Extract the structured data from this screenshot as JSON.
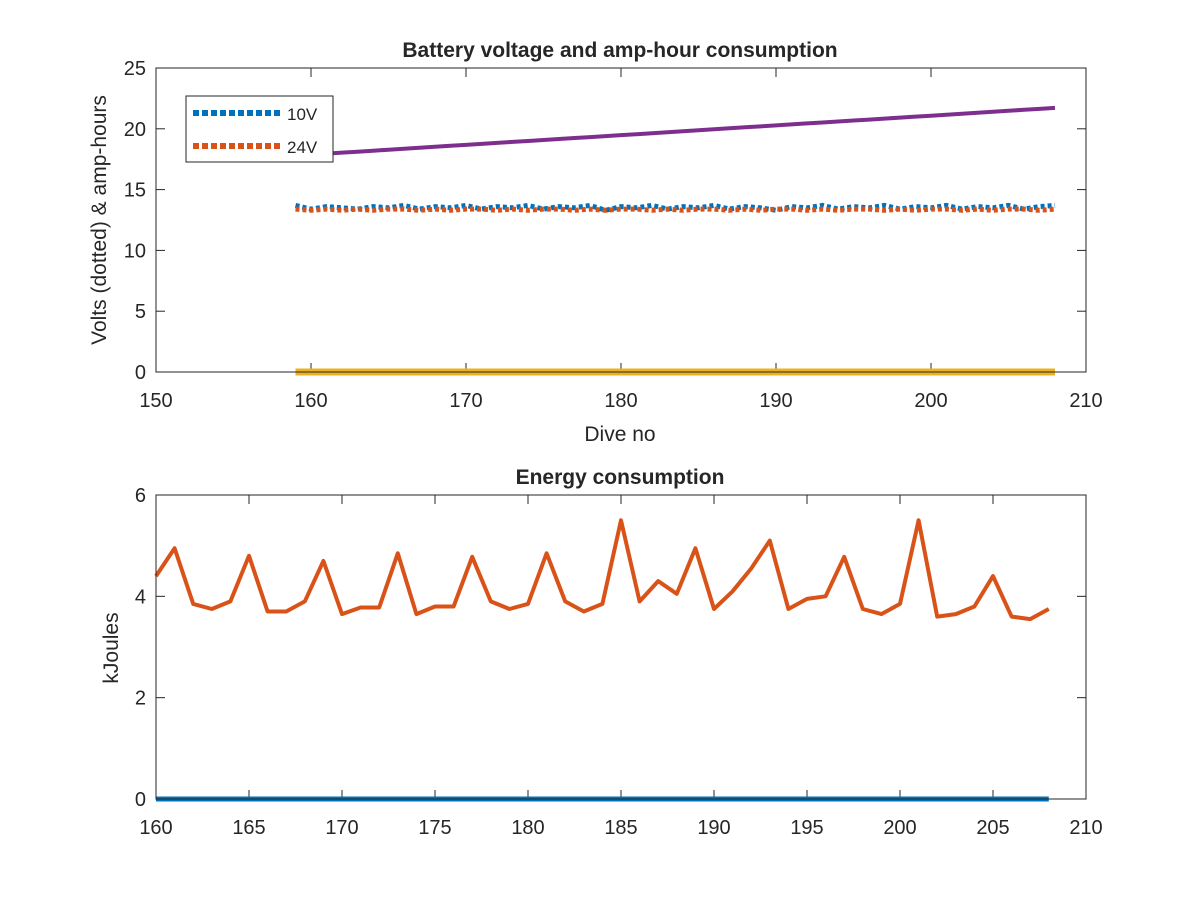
{
  "chart_data": [
    {
      "type": "line",
      "title": "Battery voltage and amp-hour consumption",
      "xlabel": "Dive no",
      "ylabel": "Volts (dotted) & amp-hours",
      "xlim": [
        150,
        210
      ],
      "ylim": [
        0,
        25
      ],
      "xticks": [
        "150",
        "160",
        "170",
        "180",
        "190",
        "200",
        "210"
      ],
      "yticks": [
        "0",
        "5",
        "10",
        "15",
        "20",
        "25"
      ],
      "legend": {
        "placement": "top-left"
      },
      "colors": {
        "10V": "#0072BD",
        "24V": "#D95319",
        "amp_hours": "#7E2F8E",
        "baseline": "#EDB120"
      },
      "x": [
        159,
        160,
        161,
        162,
        163,
        164,
        165,
        166,
        167,
        168,
        169,
        170,
        171,
        172,
        173,
        174,
        175,
        176,
        177,
        178,
        179,
        180,
        181,
        182,
        183,
        184,
        185,
        186,
        187,
        188,
        189,
        190,
        191,
        192,
        193,
        194,
        195,
        196,
        197,
        198,
        199,
        200,
        201,
        202,
        203,
        204,
        205,
        206,
        207,
        208
      ],
      "series": [
        {
          "name": "10V",
          "style": "dotted",
          "color": "#0072BD",
          "values": [
            13.7,
            13.4,
            13.6,
            13.5,
            13.4,
            13.6,
            13.5,
            13.7,
            13.4,
            13.6,
            13.5,
            13.7,
            13.4,
            13.6,
            13.5,
            13.7,
            13.4,
            13.6,
            13.5,
            13.7,
            13.3,
            13.6,
            13.5,
            13.7,
            13.4,
            13.6,
            13.5,
            13.7,
            13.4,
            13.6,
            13.5,
            13.3,
            13.6,
            13.5,
            13.7,
            13.4,
            13.6,
            13.5,
            13.7,
            13.4,
            13.6,
            13.5,
            13.7,
            13.4,
            13.6,
            13.5,
            13.7,
            13.4,
            13.6,
            13.7
          ]
        },
        {
          "name": "24V",
          "style": "dotted",
          "color": "#D95319",
          "values": [
            13.4,
            13.3,
            13.4,
            13.3,
            13.4,
            13.3,
            13.4,
            13.4,
            13.3,
            13.4,
            13.3,
            13.4,
            13.4,
            13.3,
            13.4,
            13.3,
            13.4,
            13.4,
            13.3,
            13.4,
            13.3,
            13.4,
            13.4,
            13.3,
            13.4,
            13.3,
            13.4,
            13.4,
            13.3,
            13.4,
            13.3,
            13.4,
            13.4,
            13.3,
            13.4,
            13.3,
            13.4,
            13.4,
            13.3,
            13.4,
            13.3,
            13.4,
            13.4,
            13.3,
            13.4,
            13.3,
            13.4,
            13.4,
            13.3,
            13.4
          ]
        },
        {
          "style": "solid",
          "color": "#7E2F8E",
          "values": [
            17.8,
            17.88,
            17.96,
            18.04,
            18.12,
            18.2,
            18.28,
            18.36,
            18.44,
            18.52,
            18.6,
            18.68,
            18.76,
            18.84,
            18.92,
            19.0,
            19.08,
            19.16,
            19.24,
            19.32,
            19.4,
            19.48,
            19.56,
            19.64,
            19.72,
            19.8,
            19.88,
            19.96,
            20.04,
            20.12,
            20.2,
            20.28,
            20.36,
            20.44,
            20.52,
            20.6,
            20.68,
            20.76,
            20.84,
            20.92,
            21.0,
            21.08,
            21.16,
            21.24,
            21.32,
            21.4,
            21.48,
            21.56,
            21.64,
            21.72
          ]
        },
        {
          "style": "solid",
          "color": "#EDB120",
          "values": [
            0,
            0,
            0,
            0,
            0,
            0,
            0,
            0,
            0,
            0,
            0,
            0,
            0,
            0,
            0,
            0,
            0,
            0,
            0,
            0,
            0,
            0,
            0,
            0,
            0,
            0,
            0,
            0,
            0,
            0,
            0,
            0,
            0,
            0,
            0,
            0,
            0,
            0,
            0,
            0,
            0,
            0,
            0,
            0,
            0,
            0,
            0,
            0,
            0,
            0
          ]
        }
      ]
    },
    {
      "type": "line",
      "title": "Energy consumption",
      "xlabel": "",
      "ylabel": "kJoules",
      "xlim": [
        160,
        210
      ],
      "ylim": [
        0,
        6
      ],
      "xticks": [
        "160",
        "165",
        "170",
        "175",
        "180",
        "185",
        "190",
        "195",
        "200",
        "205",
        "210"
      ],
      "yticks": [
        "0",
        "2",
        "4",
        "6"
      ],
      "x": [
        160,
        161,
        162,
        163,
        164,
        165,
        166,
        167,
        168,
        169,
        170,
        171,
        172,
        173,
        174,
        175,
        176,
        177,
        178,
        179,
        180,
        181,
        182,
        183,
        184,
        185,
        186,
        187,
        188,
        189,
        190,
        191,
        192,
        193,
        194,
        195,
        196,
        197,
        198,
        199,
        200,
        201,
        202,
        203,
        204,
        205,
        206,
        207,
        208
      ],
      "series": [
        {
          "style": "solid",
          "color": "#D95319",
          "values": [
            4.4,
            4.95,
            3.85,
            3.75,
            3.9,
            4.8,
            3.7,
            3.7,
            3.9,
            4.7,
            3.65,
            3.78,
            3.78,
            4.85,
            3.65,
            3.8,
            3.8,
            4.78,
            3.9,
            3.75,
            3.85,
            4.85,
            3.9,
            3.7,
            3.85,
            5.5,
            3.9,
            4.3,
            4.05,
            4.95,
            3.75,
            4.1,
            4.55,
            5.1,
            3.75,
            3.95,
            4.0,
            4.78,
            3.75,
            3.65,
            3.85,
            5.5,
            3.6,
            3.65,
            3.8,
            4.4,
            3.6,
            3.55,
            3.75
          ]
        },
        {
          "style": "solid",
          "color": "#0072BD",
          "values": [
            0,
            0,
            0,
            0,
            0,
            0,
            0,
            0,
            0,
            0,
            0,
            0,
            0,
            0,
            0,
            0,
            0,
            0,
            0,
            0,
            0,
            0,
            0,
            0,
            0,
            0,
            0,
            0,
            0,
            0,
            0,
            0,
            0,
            0,
            0,
            0,
            0,
            0,
            0,
            0,
            0,
            0,
            0,
            0,
            0,
            0,
            0,
            0,
            0
          ]
        }
      ]
    }
  ]
}
